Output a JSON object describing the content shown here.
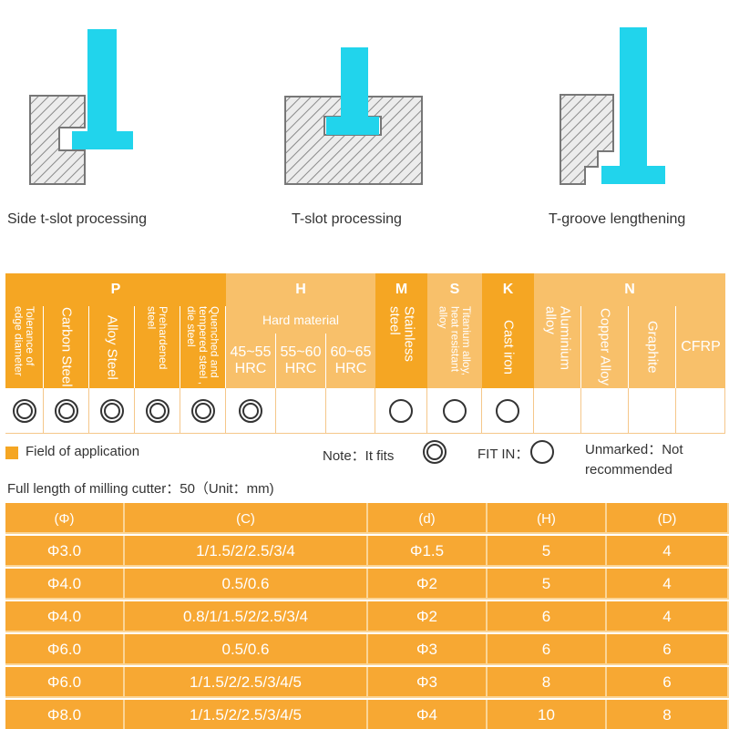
{
  "diagrams": [
    {
      "label": "Side t-slot processing"
    },
    {
      "label": "T-slot processing"
    },
    {
      "label": "T-groove lengthening"
    }
  ],
  "colors": {
    "orange": "#f5a623",
    "light_orange": "#f8c06a",
    "cyan": "#21d4ec",
    "hatch": "#8a8a8a"
  },
  "categories": {
    "P": "P",
    "H": "H",
    "M": "M",
    "S": "S",
    "K": "K",
    "N": "N"
  },
  "materials": {
    "tolerance": "Tolerance of edge diameter",
    "carbon": "Carbon Steel",
    "alloy": "Alloy Steel",
    "prehardened": "Prehardened steel",
    "quenched": "Quenched and tempered steel , die steel",
    "hard_material": "Hard material",
    "hrc1": "45~55 HRC",
    "hrc2": "55~60 HRC",
    "hrc3": "60~65 HRC",
    "stainless": "Stainless steel",
    "titanium": "Titanium alloy, heat resistant alloy",
    "cast_iron": "Cast iron",
    "aluminium": "Aluminium alloy",
    "copper": "Copper Alloy",
    "graphite": "Graphite",
    "cfrp": "CFRP"
  },
  "marks": [
    "fits",
    "fits",
    "fits",
    "fits",
    "fits",
    "fits",
    "none",
    "none",
    "fitin",
    "fitin",
    "fitin",
    "none",
    "none",
    "none",
    "none"
  ],
  "legend": {
    "field": "Field of application",
    "note": "Note：It fits",
    "fitin": "FIT IN：",
    "unmarked": "Unmarked：Not recommended"
  },
  "full_length": "Full length of milling cutter：50（Unit：mm)",
  "spec_table": {
    "headers": [
      "(Φ)",
      "(C)",
      "(d)",
      "(H)",
      "(D)"
    ],
    "rows": [
      [
        "Φ3.0",
        "1/1.5/2/2.5/3/4",
        "Φ1.5",
        "5",
        "4"
      ],
      [
        "Φ4.0",
        "0.5/0.6",
        "Φ2",
        "5",
        "4"
      ],
      [
        "Φ4.0",
        "0.8/1/1.5/2/2.5/3/4",
        "Φ2",
        "6",
        "4"
      ],
      [
        "Φ6.0",
        "0.5/0.6",
        "Φ3",
        "6",
        "6"
      ],
      [
        "Φ6.0",
        "1/1.5/2/2.5/3/4/5",
        "Φ3",
        "8",
        "6"
      ],
      [
        "Φ8.0",
        "1/1.5/2/2.5/3/4/5",
        "Φ4",
        "10",
        "8"
      ]
    ]
  }
}
